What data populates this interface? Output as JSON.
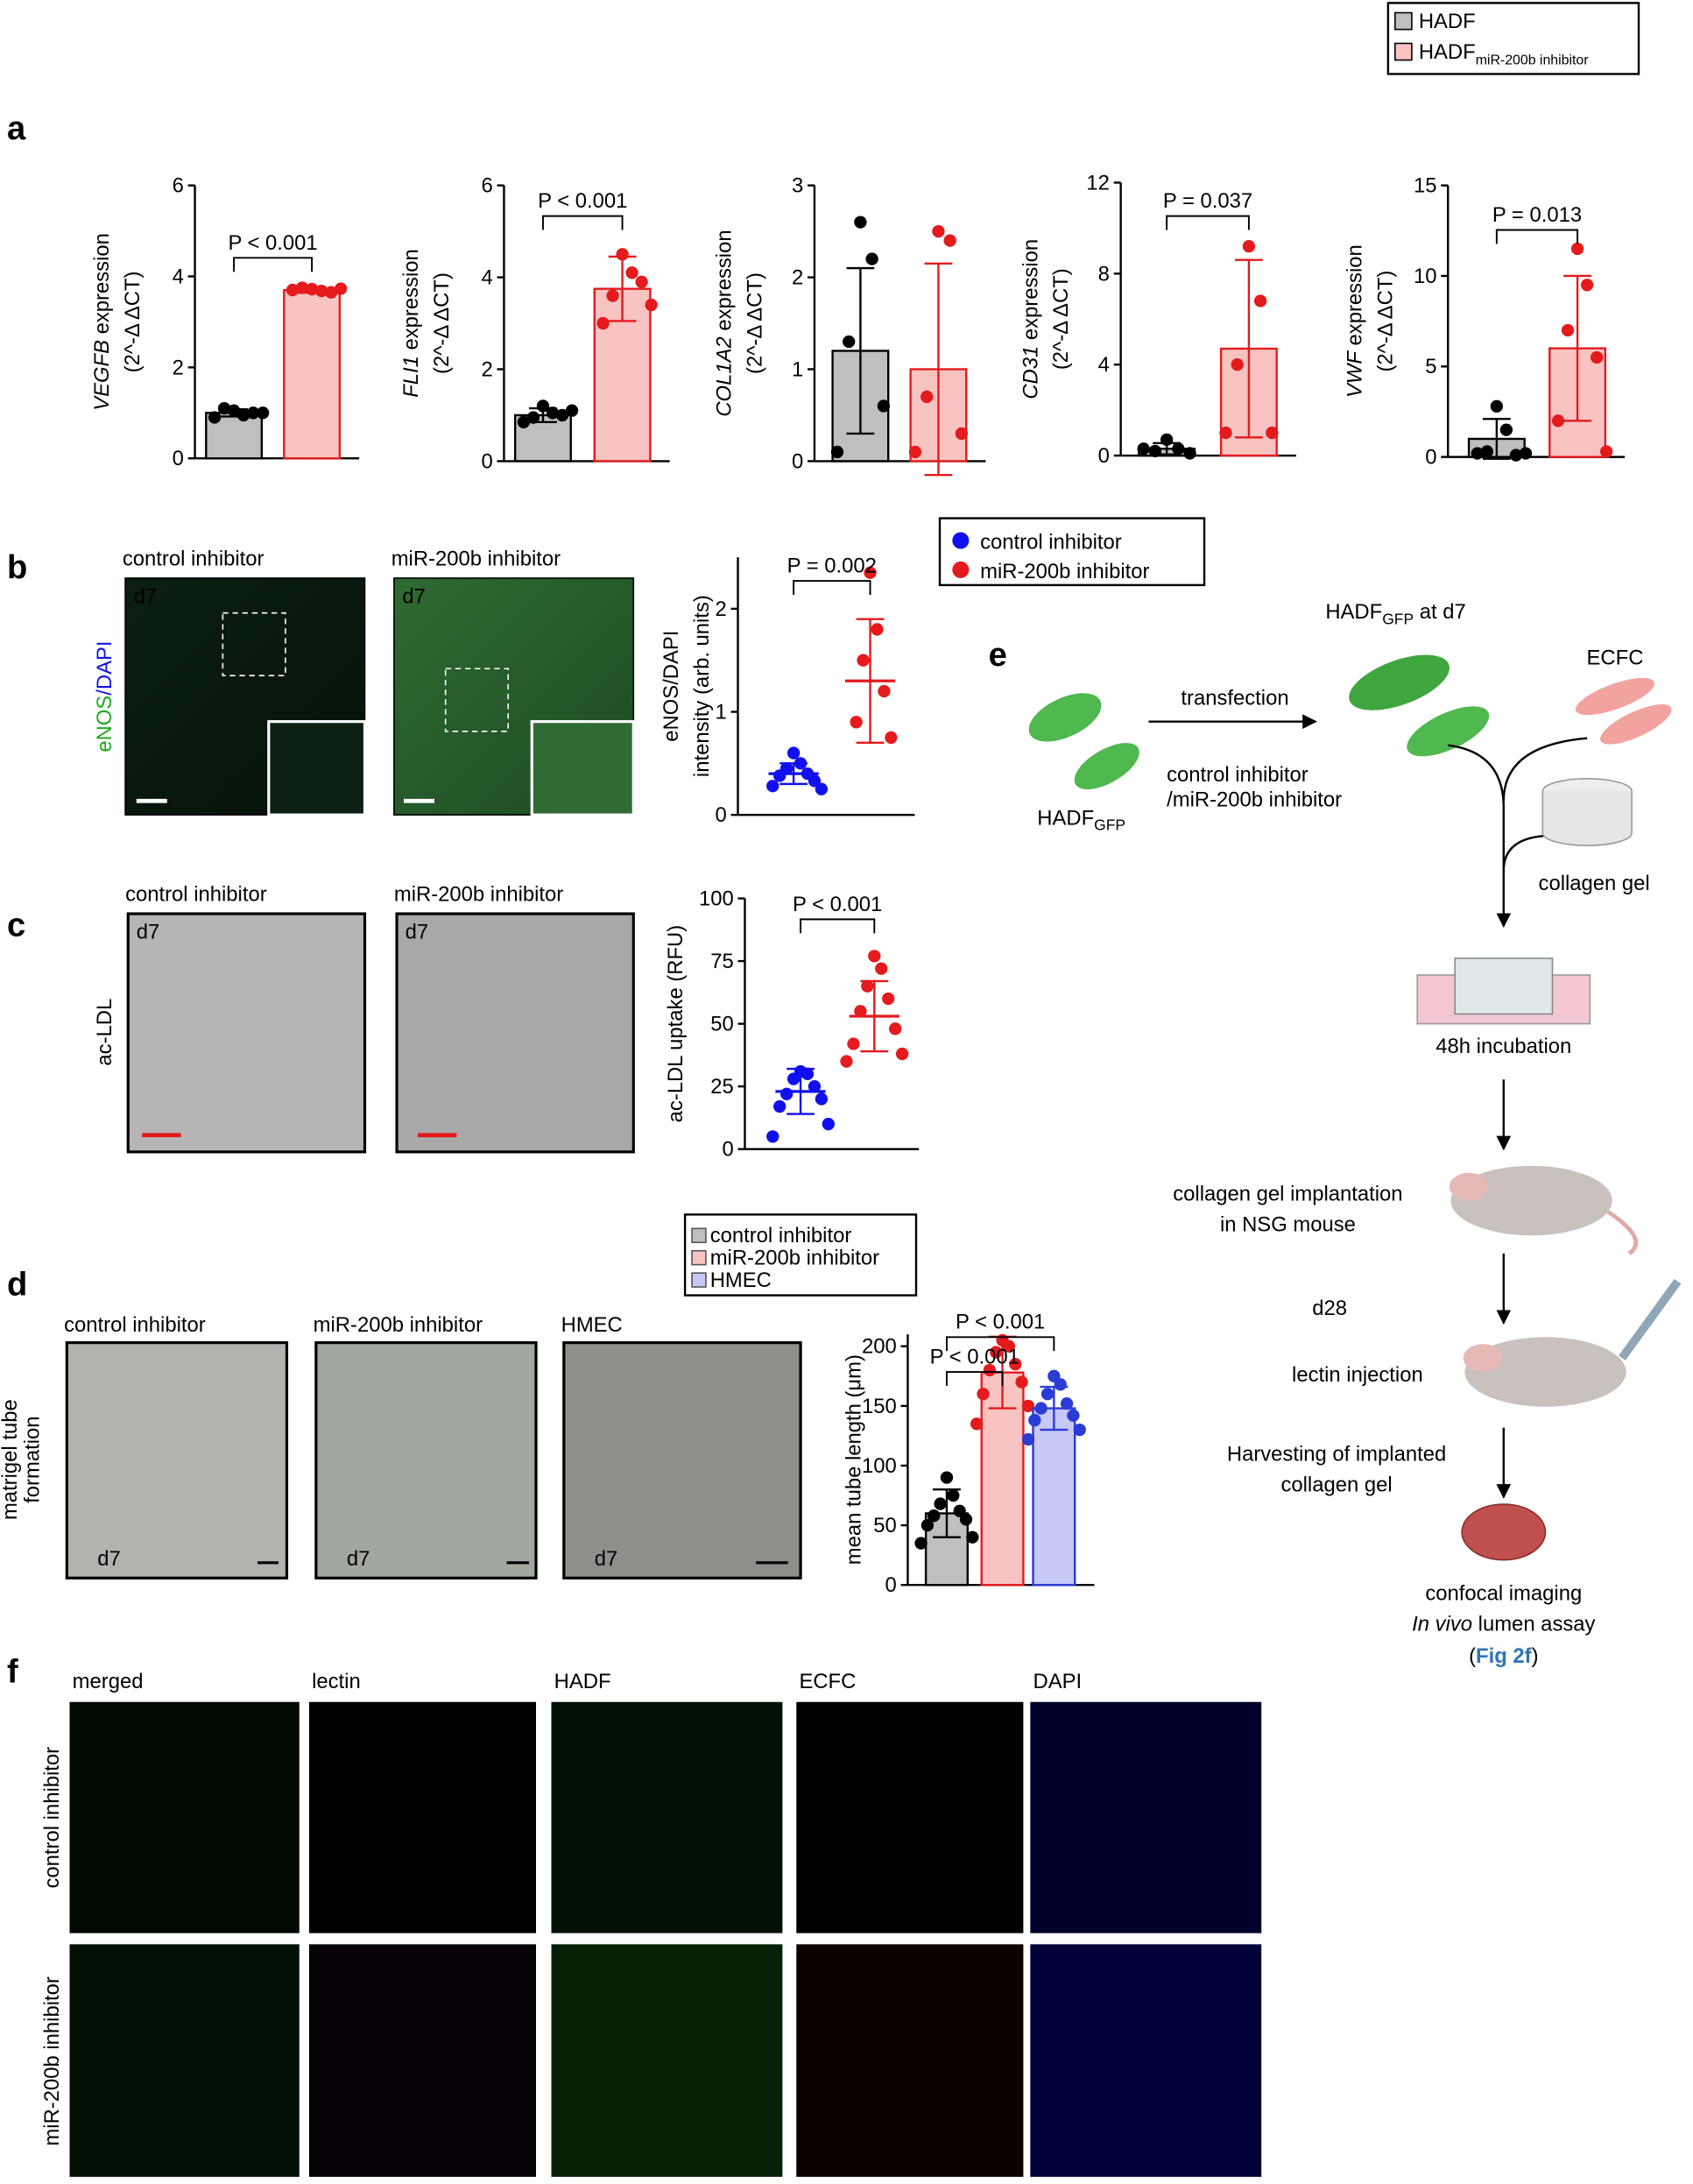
{
  "chart_data": [
    {
      "type": "bar",
      "ylabel": [
        [
          "VEGFB",
          " expression"
        ],
        "(2^-Δ ΔCT)"
      ],
      "ylim": [
        0,
        6
      ],
      "yticks": [
        0,
        2,
        4,
        6
      ],
      "annotations": [
        "P < 0.001"
      ],
      "series": [
        {
          "color": "#bfbfbf",
          "stroke": "#000000",
          "point_color": "#000000",
          "values": [
            1.0
          ],
          "errors": [
            0.08
          ],
          "points": [
            1.05,
            0.95,
            1.1,
            1.0,
            0.9,
            1.0
          ]
        },
        {
          "color": "#f8c3c1",
          "stroke": "#e41a1c",
          "point_color": "#e41a1c",
          "values": [
            3.7
          ],
          "errors": [
            0.06
          ],
          "points": [
            3.72,
            3.68,
            3.75,
            3.65,
            3.7,
            3.73
          ]
        }
      ]
    },
    {
      "type": "bar",
      "ylabel": [
        [
          "FLI1",
          " expression"
        ],
        "(2^-Δ ΔCT)"
      ],
      "ylim": [
        0,
        6
      ],
      "yticks": [
        0,
        2,
        4,
        6
      ],
      "annotations": [
        "P < 0.001"
      ],
      "series": [
        {
          "color": "#bfbfbf",
          "stroke": "#000000",
          "point_color": "#000000",
          "values": [
            1.0
          ],
          "errors": [
            0.15
          ],
          "points": [
            1.2,
            1.05,
            0.95,
            1.0,
            0.85,
            1.1
          ]
        },
        {
          "color": "#f8c3c1",
          "stroke": "#e41a1c",
          "point_color": "#e41a1c",
          "values": [
            3.75
          ],
          "errors": [
            0.7
          ],
          "points": [
            4.5,
            4.1,
            3.6,
            3.9,
            3.0,
            3.4
          ]
        }
      ]
    },
    {
      "type": "bar",
      "ylabel": [
        [
          "COL1A2",
          " expression"
        ],
        "(2^-Δ ΔCT)"
      ],
      "ylim": [
        0,
        3
      ],
      "yticks": [
        0,
        1,
        2,
        3
      ],
      "annotations": [],
      "series": [
        {
          "color": "#bfbfbf",
          "stroke": "#000000",
          "point_color": "#000000",
          "values": [
            1.2
          ],
          "errors": [
            0.9
          ],
          "points": [
            2.6,
            2.2,
            1.3,
            0.6,
            0.1
          ]
        },
        {
          "color": "#f8c3c1",
          "stroke": "#e41a1c",
          "point_color": "#e41a1c",
          "values": [
            1.0
          ],
          "errors": [
            1.15
          ],
          "points": [
            2.5,
            2.4,
            0.7,
            0.3,
            0.1
          ]
        }
      ]
    },
    {
      "type": "bar",
      "ylabel": [
        [
          "CD31",
          " expression"
        ],
        "(2^-Δ ΔCT)"
      ],
      "ylim": [
        0,
        12
      ],
      "yticks": [
        0,
        4,
        8,
        12
      ],
      "annotations": [
        "P = 0.037"
      ],
      "series": [
        {
          "color": "#bfbfbf",
          "stroke": "#000000",
          "point_color": "#000000",
          "values": [
            0.3
          ],
          "errors": [
            0.25
          ],
          "points": [
            0.7,
            0.3,
            0.2,
            0.1,
            0.3
          ]
        },
        {
          "color": "#f8c3c1",
          "stroke": "#e41a1c",
          "point_color": "#e41a1c",
          "values": [
            4.7
          ],
          "errors": [
            3.9
          ],
          "points": [
            9.2,
            6.8,
            4.0,
            1.0,
            1.0
          ]
        }
      ]
    },
    {
      "type": "bar",
      "ylabel": [
        [
          "VWF",
          " expression"
        ],
        "(2^-Δ ΔCT)"
      ],
      "ylim": [
        0,
        15
      ],
      "yticks": [
        0,
        5,
        10,
        15
      ],
      "annotations": [
        "P = 0.013"
      ],
      "series": [
        {
          "color": "#bfbfbf",
          "stroke": "#000000",
          "point_color": "#000000",
          "values": [
            1.0
          ],
          "errors": [
            1.1
          ],
          "points": [
            2.8,
            1.5,
            0.3,
            0.1,
            0.2,
            0.2
          ]
        },
        {
          "color": "#f8c3c1",
          "stroke": "#e41a1c",
          "point_color": "#e41a1c",
          "values": [
            6.0
          ],
          "errors": [
            4.0
          ],
          "points": [
            11.5,
            9.5,
            7.0,
            5.5,
            2.0,
            0.3
          ]
        }
      ]
    },
    {
      "type": "dotplot",
      "ylabel": [
        "eNOS/DAPI",
        "intensity (arb. units)"
      ],
      "ylim": [
        0,
        2.5
      ],
      "yticks": [
        0,
        1,
        2
      ],
      "annotations": [
        "P = 0.002"
      ],
      "series": [
        {
          "stroke": "#1010ee",
          "point_color": "#1010ee",
          "values": [
            0.4
          ],
          "errors": [
            0.1
          ],
          "points": [
            0.6,
            0.5,
            0.45,
            0.4,
            0.38,
            0.33,
            0.28,
            0.25
          ]
        },
        {
          "stroke": "#e41a1c",
          "point_color": "#e41a1c",
          "values": [
            1.3
          ],
          "errors": [
            0.6
          ],
          "points": [
            2.35,
            1.8,
            1.5,
            1.2,
            0.9,
            0.75
          ]
        }
      ]
    },
    {
      "type": "dotplot",
      "ylabel": [
        "ac-LDL uptake (RFU)"
      ],
      "ylim": [
        0,
        100
      ],
      "yticks": [
        0,
        25,
        50,
        75,
        100
      ],
      "annotations": [
        "P < 0.001"
      ],
      "series": [
        {
          "stroke": "#1010ee",
          "point_color": "#1010ee",
          "values": [
            23
          ],
          "errors": [
            9
          ],
          "points": [
            31,
            30,
            28,
            25,
            22,
            20,
            17,
            10,
            5
          ]
        },
        {
          "stroke": "#e41a1c",
          "point_color": "#e41a1c",
          "values": [
            53
          ],
          "errors": [
            14
          ],
          "points": [
            77,
            72,
            65,
            60,
            55,
            48,
            42,
            38,
            35
          ]
        }
      ]
    },
    {
      "type": "bar",
      "ylabel": [
        "mean tube length (μm)"
      ],
      "ylim": [
        0,
        210
      ],
      "yticks": [
        0,
        50,
        100,
        150,
        200
      ],
      "annotations": [
        "P < 0.001",
        "P < 0.001"
      ],
      "series": [
        {
          "color": "#bfbfbf",
          "stroke": "#000000",
          "point_color": "#000000",
          "values": [
            60
          ],
          "errors": [
            20
          ],
          "points": [
            90,
            75,
            68,
            62,
            58,
            55,
            50,
            40,
            35
          ]
        },
        {
          "color": "#f8c3c1",
          "stroke": "#e41a1c",
          "point_color": "#e41a1c",
          "values": [
            178
          ],
          "errors": [
            30
          ],
          "points": [
            205,
            200,
            195,
            185,
            180,
            170,
            160,
            150,
            135
          ]
        },
        {
          "color": "#c6c8f5",
          "stroke": "#2b3bd6",
          "point_color": "#2b3bd6",
          "values": [
            148
          ],
          "errors": [
            18
          ],
          "points": [
            175,
            168,
            160,
            152,
            148,
            142,
            138,
            130,
            122
          ]
        }
      ]
    }
  ],
  "legend_a": [
    {
      "name": "HADF",
      "color": "#bfbfbf"
    },
    {
      "name": "HADF",
      "sub": "miR-200b inhibitor",
      "color": "#f8c3c1"
    }
  ],
  "legend_bc": [
    {
      "name": "control inhibitor",
      "color": "#1010ee"
    },
    {
      "name": "miR-200b inhibitor",
      "color": "#e41a1c"
    }
  ],
  "legend_d": [
    {
      "name": "control inhibitor",
      "color": "#bfbfbf"
    },
    {
      "name": "miR-200b inhibitor",
      "color": "#f8c3c1"
    },
    {
      "name": "HMEC",
      "color": "#c6c8f5"
    }
  ],
  "panel_labels": [
    "a",
    "b",
    "c",
    "d",
    "e",
    "f"
  ],
  "day": "d7",
  "b": {
    "titles": [
      "control inhibitor",
      "miR-200b inhibitor"
    ],
    "stain": [
      "eNOS",
      "/DAPI"
    ]
  },
  "c": {
    "titles": [
      "control inhibitor",
      "miR-200b inhibitor"
    ],
    "stain": "ac-LDL"
  },
  "d": {
    "titles": [
      "control inhibitor",
      "miR-200b inhibitor",
      "HMEC"
    ],
    "side": [
      "matrigel tube",
      "formation"
    ]
  },
  "e": {
    "transfection": "transfection",
    "inhibitors": [
      "control inhibitor",
      "/miR-200b inhibitor"
    ],
    "hadf": "HADF",
    "gfp": "GFP",
    "at_d7": " at d7",
    "ecfc": "ECFC",
    "collagen": "collagen gel",
    "incubation": "48h incubation",
    "implant": [
      "collagen gel implantation",
      "in NSG mouse"
    ],
    "d28": "d28",
    "lectin": "lectin injection",
    "harvest": [
      "Harvesting of implanted",
      "collagen gel"
    ],
    "imaging": "confocal imaging",
    "invivo": [
      "In vivo",
      " lumen assay"
    ],
    "fig": [
      "(",
      "Fig 2f",
      ")"
    ]
  },
  "f": {
    "columns": [
      "merged",
      "lectin",
      "HADF",
      "ECFC",
      "DAPI"
    ],
    "column_colors": [
      "#000000",
      "#9b2fae",
      "#1aaa1a",
      "#e41a1c",
      "#1010ee"
    ],
    "rows": [
      "control inhibitor",
      "miR-200b inhibitor"
    ]
  }
}
